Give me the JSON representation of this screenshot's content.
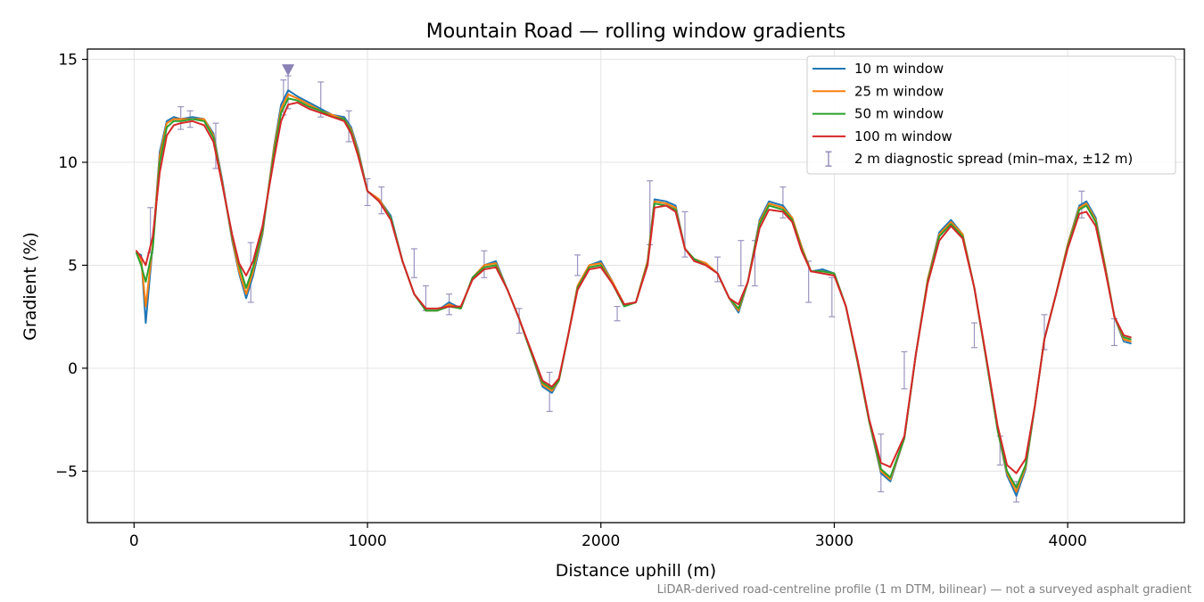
{
  "chart_data": {
    "type": "line",
    "title": "Mountain Road — rolling window gradients",
    "xlabel": "Distance uphill (m)",
    "ylabel": "Gradient (%)",
    "xlim": [
      -200,
      4500
    ],
    "ylim": [
      -7.5,
      15.5
    ],
    "xticks": [
      0,
      1000,
      2000,
      3000,
      4000
    ],
    "xtick_labels": [
      "0",
      "1000",
      "2000",
      "3000",
      "4000"
    ],
    "yticks": [
      -5,
      0,
      5,
      10,
      15
    ],
    "ytick_labels": [
      "−5",
      "0",
      "5",
      "10",
      "15"
    ],
    "grid": true,
    "legend_position": "top-right",
    "footnote": "LiDAR-derived road-centreline profile (1 m DTM, bilinear) — not a surveyed asphalt gradient",
    "x": [
      10,
      30,
      50,
      80,
      110,
      140,
      170,
      200,
      250,
      300,
      340,
      380,
      420,
      450,
      480,
      510,
      550,
      600,
      630,
      660,
      700,
      750,
      800,
      850,
      900,
      930,
      960,
      1000,
      1050,
      1100,
      1150,
      1200,
      1250,
      1300,
      1350,
      1400,
      1450,
      1500,
      1550,
      1600,
      1650,
      1700,
      1750,
      1790,
      1820,
      1860,
      1900,
      1950,
      2000,
      2050,
      2100,
      2150,
      2200,
      2230,
      2280,
      2320,
      2360,
      2400,
      2450,
      2500,
      2550,
      2590,
      2630,
      2680,
      2720,
      2780,
      2820,
      2860,
      2900,
      2950,
      3000,
      3050,
      3100,
      3150,
      3200,
      3240,
      3300,
      3350,
      3400,
      3450,
      3500,
      3550,
      3600,
      3650,
      3700,
      3740,
      3780,
      3820,
      3860,
      3900,
      3950,
      4000,
      4050,
      4080,
      4120,
      4160,
      4200,
      4240,
      4270
    ],
    "series": [
      {
        "name": "10 m window",
        "color": "#1f77b4",
        "values": [
          5.6,
          5.5,
          2.2,
          6.0,
          10.5,
          12.0,
          12.2,
          12.1,
          12.2,
          12.1,
          11.4,
          9.0,
          6.2,
          4.6,
          3.4,
          4.5,
          6.5,
          10.8,
          12.8,
          13.5,
          13.2,
          12.9,
          12.6,
          12.3,
          12.2,
          11.7,
          10.6,
          8.6,
          8.2,
          7.4,
          5.2,
          3.6,
          2.8,
          2.8,
          3.2,
          2.9,
          4.4,
          5.0,
          5.2,
          3.8,
          2.4,
          0.8,
          -0.9,
          -1.2,
          -0.6,
          1.6,
          4.0,
          5.0,
          5.2,
          4.2,
          3.1,
          3.2,
          5.2,
          8.2,
          8.1,
          7.9,
          5.8,
          5.3,
          5.1,
          4.6,
          3.4,
          2.7,
          4.2,
          7.2,
          8.1,
          7.9,
          7.3,
          5.9,
          4.7,
          4.8,
          4.6,
          3.0,
          0.3,
          -2.6,
          -5.1,
          -5.5,
          -3.4,
          0.7,
          4.3,
          6.6,
          7.2,
          6.5,
          3.9,
          0.5,
          -3.0,
          -5.2,
          -6.2,
          -4.9,
          -1.8,
          1.4,
          3.6,
          6.0,
          7.9,
          8.1,
          7.3,
          5.0,
          2.5,
          1.3,
          1.2
        ]
      },
      {
        "name": "25 m window",
        "color": "#ff7f0e",
        "values": [
          5.6,
          5.3,
          3.0,
          6.0,
          10.3,
          11.9,
          12.1,
          12.1,
          12.1,
          12.1,
          11.3,
          8.9,
          6.3,
          4.7,
          3.6,
          4.7,
          6.6,
          10.7,
          12.6,
          13.3,
          13.1,
          12.8,
          12.5,
          12.3,
          12.1,
          11.6,
          10.5,
          8.6,
          8.2,
          7.3,
          5.2,
          3.6,
          2.8,
          2.8,
          3.1,
          2.9,
          4.4,
          5.0,
          5.1,
          3.8,
          2.4,
          0.8,
          -0.8,
          -1.1,
          -0.6,
          1.6,
          4.0,
          5.0,
          5.1,
          4.2,
          3.1,
          3.2,
          5.2,
          8.1,
          8.0,
          7.8,
          5.8,
          5.3,
          5.1,
          4.6,
          3.4,
          2.8,
          4.2,
          7.1,
          8.0,
          7.8,
          7.3,
          5.9,
          4.7,
          4.7,
          4.6,
          3.0,
          0.3,
          -2.6,
          -5.0,
          -5.4,
          -3.4,
          0.7,
          4.3,
          6.5,
          7.1,
          6.5,
          3.9,
          0.5,
          -3.0,
          -5.1,
          -6.0,
          -4.8,
          -1.8,
          1.4,
          3.6,
          6.0,
          7.8,
          8.0,
          7.2,
          5.0,
          2.5,
          1.4,
          1.3
        ]
      },
      {
        "name": "50 m window",
        "color": "#2ca02c",
        "values": [
          5.6,
          5.0,
          4.2,
          5.8,
          10.0,
          11.7,
          12.0,
          12.0,
          12.1,
          12.0,
          11.2,
          8.8,
          6.4,
          5.0,
          3.9,
          4.9,
          6.7,
          10.5,
          12.4,
          13.1,
          13.0,
          12.7,
          12.5,
          12.2,
          12.1,
          11.5,
          10.4,
          8.6,
          8.1,
          7.3,
          5.2,
          3.6,
          2.8,
          2.8,
          3.0,
          2.9,
          4.4,
          4.9,
          5.0,
          3.8,
          2.4,
          0.8,
          -0.7,
          -1.0,
          -0.6,
          1.6,
          3.9,
          4.9,
          5.0,
          4.1,
          3.0,
          3.2,
          5.1,
          8.0,
          7.9,
          7.7,
          5.8,
          5.3,
          5.0,
          4.6,
          3.4,
          2.9,
          4.2,
          7.0,
          7.9,
          7.7,
          7.2,
          5.8,
          4.7,
          4.7,
          4.6,
          3.0,
          0.3,
          -2.6,
          -4.9,
          -5.3,
          -3.4,
          0.7,
          4.2,
          6.4,
          7.0,
          6.4,
          3.9,
          0.5,
          -3.0,
          -5.0,
          -5.8,
          -4.7,
          -1.8,
          1.4,
          3.6,
          5.9,
          7.7,
          7.9,
          7.1,
          4.9,
          2.5,
          1.5,
          1.4
        ]
      },
      {
        "name": "100 m window",
        "color": "#d62728",
        "values": [
          5.7,
          5.4,
          5.0,
          6.4,
          9.5,
          11.3,
          11.8,
          11.9,
          12.0,
          11.8,
          11.0,
          8.8,
          6.5,
          5.1,
          4.5,
          5.2,
          6.9,
          10.2,
          12.0,
          12.8,
          12.9,
          12.6,
          12.4,
          12.2,
          12.0,
          11.4,
          10.3,
          8.6,
          8.1,
          7.2,
          5.2,
          3.6,
          2.9,
          2.9,
          3.0,
          3.0,
          4.3,
          4.8,
          4.9,
          3.8,
          2.4,
          0.9,
          -0.6,
          -0.9,
          -0.5,
          1.6,
          3.8,
          4.8,
          4.9,
          4.1,
          3.1,
          3.2,
          5.0,
          7.8,
          7.9,
          7.6,
          5.8,
          5.2,
          5.0,
          4.6,
          3.4,
          3.1,
          4.2,
          6.8,
          7.7,
          7.6,
          7.1,
          5.7,
          4.7,
          4.6,
          4.5,
          3.0,
          0.4,
          -2.5,
          -4.6,
          -4.8,
          -3.3,
          0.7,
          4.1,
          6.2,
          6.9,
          6.3,
          3.9,
          0.6,
          -2.8,
          -4.7,
          -5.1,
          -4.4,
          -1.8,
          1.4,
          3.6,
          5.8,
          7.5,
          7.6,
          6.9,
          4.8,
          2.5,
          1.6,
          1.5
        ]
      }
    ],
    "errorbar_series": {
      "name": "2 m diagnostic spread (min–max, ±12 m)",
      "color": "#8a82b6",
      "x": [
        70,
        200,
        240,
        350,
        500,
        640,
        660,
        800,
        920,
        1000,
        1060,
        1200,
        1250,
        1350,
        1500,
        1650,
        1780,
        1900,
        2070,
        2210,
        2360,
        2500,
        2600,
        2660,
        2780,
        2890,
        2990,
        3200,
        3300,
        3600,
        3710,
        3780,
        3900,
        4060,
        4200
      ],
      "center": [
        6.7,
        12.1,
        12.2,
        10.8,
        4.6,
        13.3,
        13.5,
        13.0,
        11.9,
        8.6,
        8.1,
        5.1,
        3.4,
        3.0,
        5.0,
        2.3,
        -1.2,
        5.0,
        2.8,
        7.5,
        6.5,
        4.8,
        5.0,
        5.0,
        8.0,
        4.3,
        4.3,
        -4.6,
        -0.8,
        1.4,
        -4.0,
        -6.0,
        1.6,
        7.9,
        1.8
      ],
      "low": [
        5.6,
        11.6,
        11.7,
        9.7,
        3.2,
        12.3,
        12.6,
        12.2,
        11.0,
        7.9,
        7.5,
        4.4,
        2.8,
        2.6,
        4.4,
        1.7,
        -2.1,
        4.5,
        2.3,
        6.0,
        5.4,
        4.2,
        4.0,
        4.0,
        7.3,
        3.2,
        2.5,
        -6.0,
        -1.0,
        1.0,
        -4.7,
        -6.5,
        0.9,
        7.3,
        1.1
      ],
      "high": [
        7.8,
        12.7,
        12.5,
        11.9,
        6.1,
        14.0,
        14.2,
        13.9,
        12.5,
        9.2,
        8.8,
        5.8,
        4.0,
        3.6,
        5.7,
        2.9,
        -0.2,
        5.5,
        3.0,
        9.1,
        7.6,
        5.4,
        6.2,
        6.2,
        8.8,
        5.2,
        4.4,
        -3.2,
        0.8,
        2.2,
        -3.3,
        -5.5,
        2.6,
        8.6,
        2.4
      ]
    },
    "marker": {
      "x": 660,
      "y": 14.5,
      "shape": "triangle-down",
      "color": "#8a82b6"
    }
  }
}
